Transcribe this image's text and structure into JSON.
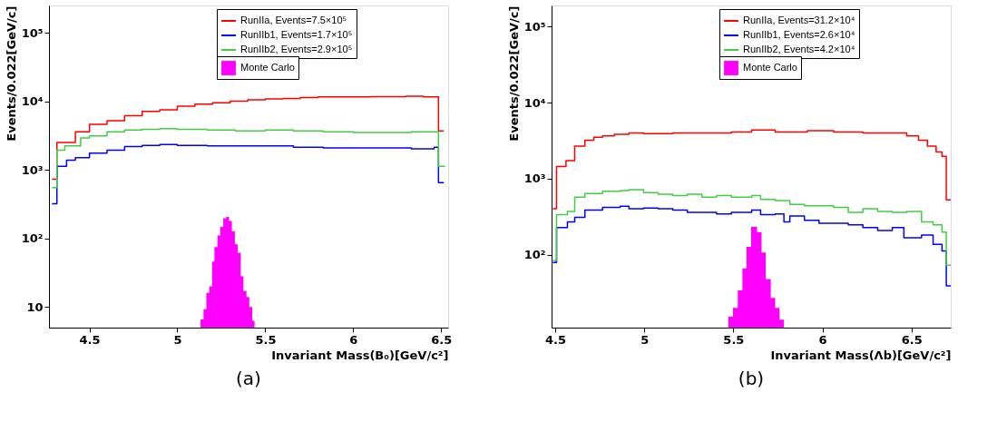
{
  "chart_data": [
    {
      "type": "step",
      "title": "(a)",
      "xlabel": "Invariant Mass(B₀)[GeV/c²]",
      "ylabel": "Events/0.022[GeV/c]",
      "xlim": [
        4.27,
        6.54
      ],
      "xticks": [
        4.5,
        5,
        5.5,
        6,
        6.5
      ],
      "ylim": [
        5,
        250000
      ],
      "yticks": [
        10,
        {
          "value": 100,
          "label": "10²"
        },
        {
          "value": 1000,
          "label": "10³"
        },
        {
          "value": 10000,
          "label": "10⁴"
        },
        {
          "value": 100000,
          "label": "10⁵"
        }
      ],
      "log": true,
      "grid": false,
      "legend": "top right",
      "series": [
        {
          "name": "RunIIa, Events=7.5×10⁵",
          "color": "#ff0000",
          "x": [
            4.287,
            4.315,
            4.42,
            4.5,
            4.6,
            4.7,
            4.8,
            4.9,
            5.0,
            5.1,
            5.2,
            5.3,
            5.4,
            5.5,
            5.6,
            5.7,
            5.8,
            5.9,
            6.0,
            6.1,
            6.2,
            6.3,
            6.4,
            6.485,
            6.515
          ],
          "values": [
            730,
            2500,
            3600,
            4600,
            5200,
            6150,
            7100,
            7500,
            8500,
            9100,
            9500,
            10000,
            10500,
            10800,
            11000,
            11300,
            11600,
            11600,
            11600,
            11700,
            11700,
            11900,
            11600,
            3700,
            3700
          ]
        },
        {
          "name": "RunIIb1, Events=1.7×10⁵",
          "color": "#0000ff",
          "x": [
            4.287,
            4.315,
            4.37,
            4.42,
            4.5,
            4.6,
            4.7,
            4.8,
            4.9,
            5.0,
            5.17,
            5.33,
            5.5,
            5.66,
            5.83,
            6.0,
            6.16,
            6.33,
            6.46,
            6.485,
            6.515
          ],
          "values": [
            320,
            1130,
            1380,
            1500,
            1750,
            1930,
            2190,
            2270,
            2340,
            2270,
            2230,
            2230,
            2230,
            2130,
            2090,
            2090,
            2090,
            2030,
            2130,
            650,
            650
          ]
        },
        {
          "name": "RunIIb2, Events=2.9×10⁵",
          "color": "#44cc44",
          "x": [
            4.287,
            4.315,
            4.36,
            4.45,
            4.5,
            4.6,
            4.7,
            4.8,
            4.9,
            5.0,
            5.17,
            5.33,
            5.5,
            5.66,
            5.83,
            6.0,
            6.16,
            6.33,
            6.485,
            6.522
          ],
          "values": [
            550,
            1930,
            2230,
            2930,
            3130,
            3600,
            3800,
            3900,
            4000,
            3900,
            3800,
            3700,
            3800,
            3700,
            3600,
            3500,
            3500,
            3600,
            1130,
            1130
          ]
        },
        {
          "name": "Monte Carlo",
          "type": "area",
          "color": "#ff00ff",
          "x": [
            5.132,
            5.149,
            5.165,
            5.182,
            5.198,
            5.211,
            5.228,
            5.244,
            5.261,
            5.277,
            5.294,
            5.31,
            5.327,
            5.343,
            5.36,
            5.376,
            5.393,
            5.409,
            5.426,
            5.439
          ],
          "values": [
            6.6,
            9.3,
            16,
            20,
            46,
            75,
            110,
            147,
            197,
            206,
            179,
            127,
            82,
            62,
            28,
            17,
            14,
            10,
            6.3,
            6.3
          ]
        }
      ]
    },
    {
      "type": "step",
      "title": "(b)",
      "xlabel": "Invariant Mass(Λb)[GeV/c²]",
      "ylabel": "Events/0.022[GeV/c]",
      "xlim": [
        4.48,
        6.72
      ],
      "xticks": [
        4.5,
        5,
        5.5,
        6,
        6.5
      ],
      "ylim": [
        11,
        190000
      ],
      "yticks": [
        {
          "value": 100,
          "label": "10²"
        },
        {
          "value": 1000,
          "label": "10³"
        },
        {
          "value": 10000,
          "label": "10⁴"
        },
        {
          "value": 100000,
          "label": "10⁵"
        }
      ],
      "log": true,
      "grid": false,
      "legend": "top right",
      "series": [
        {
          "name": "RunIIa, Events=31.2×10⁴",
          "color": "#ff0000",
          "x": [
            4.487,
            4.508,
            4.561,
            4.61,
            4.667,
            4.717,
            4.766,
            4.832,
            4.914,
            4.996,
            5.16,
            5.324,
            5.489,
            5.603,
            5.735,
            5.915,
            6.063,
            6.227,
            6.392,
            6.473,
            6.539,
            6.589,
            6.638,
            6.671,
            6.695,
            6.72
          ],
          "values": [
            403,
            1450,
            1730,
            2690,
            3200,
            3500,
            3660,
            3830,
            4000,
            3920,
            4000,
            4000,
            4100,
            4360,
            4100,
            4290,
            4100,
            4000,
            4000,
            3660,
            3200,
            2690,
            2250,
            1970,
            525,
            525
          ]
        },
        {
          "name": "RunIIb1, Events=2.6×10⁴",
          "color": "#0000ff",
          "x": [
            4.487,
            4.508,
            4.569,
            4.61,
            4.667,
            4.766,
            4.865,
            4.914,
            4.996,
            5.078,
            5.16,
            5.242,
            5.324,
            5.406,
            5.489,
            5.603,
            5.653,
            5.735,
            5.784,
            5.817,
            5.899,
            5.981,
            6.063,
            6.145,
            6.227,
            6.31,
            6.392,
            6.457,
            6.556,
            6.621,
            6.671,
            6.695,
            6.72
          ],
          "values": [
            79,
            227,
            271,
            310,
            386,
            421,
            433,
            403,
            410,
            403,
            386,
            362,
            362,
            344,
            362,
            386,
            338,
            344,
            271,
            323,
            283,
            259,
            259,
            248,
            227,
            208,
            227,
            167,
            182,
            137,
            112,
            39,
            39
          ]
        },
        {
          "name": "RunIIb2, Events=4.2×10⁴",
          "color": "#44cc44",
          "x": [
            4.487,
            4.508,
            4.569,
            4.61,
            4.667,
            4.766,
            4.865,
            4.914,
            4.996,
            5.078,
            5.16,
            5.242,
            5.324,
            5.406,
            5.489,
            5.603,
            5.653,
            5.735,
            5.817,
            5.899,
            5.981,
            6.063,
            6.145,
            6.227,
            6.31,
            6.392,
            6.473,
            6.556,
            6.621,
            6.671,
            6.695,
            6.72
          ],
          "values": [
            84,
            338,
            370,
            573,
            638,
            685,
            697,
            715,
            655,
            626,
            600,
            626,
            573,
            600,
            573,
            600,
            535,
            516,
            460,
            440,
            440,
            420,
            362,
            404,
            370,
            362,
            370,
            271,
            248,
            199,
            73,
            73
          ]
        },
        {
          "name": "Monte Carlo",
          "type": "area",
          "color": "#ff00ff",
          "x": [
            5.472,
            5.498,
            5.525,
            5.551,
            5.574,
            5.6,
            5.633,
            5.658,
            5.682,
            5.71,
            5.735,
            5.759,
            5.784
          ],
          "values": [
            15.3,
            20,
            34,
            66,
            127,
            233,
            199,
            107,
            48,
            27,
            20,
            14,
            14
          ]
        }
      ]
    }
  ]
}
